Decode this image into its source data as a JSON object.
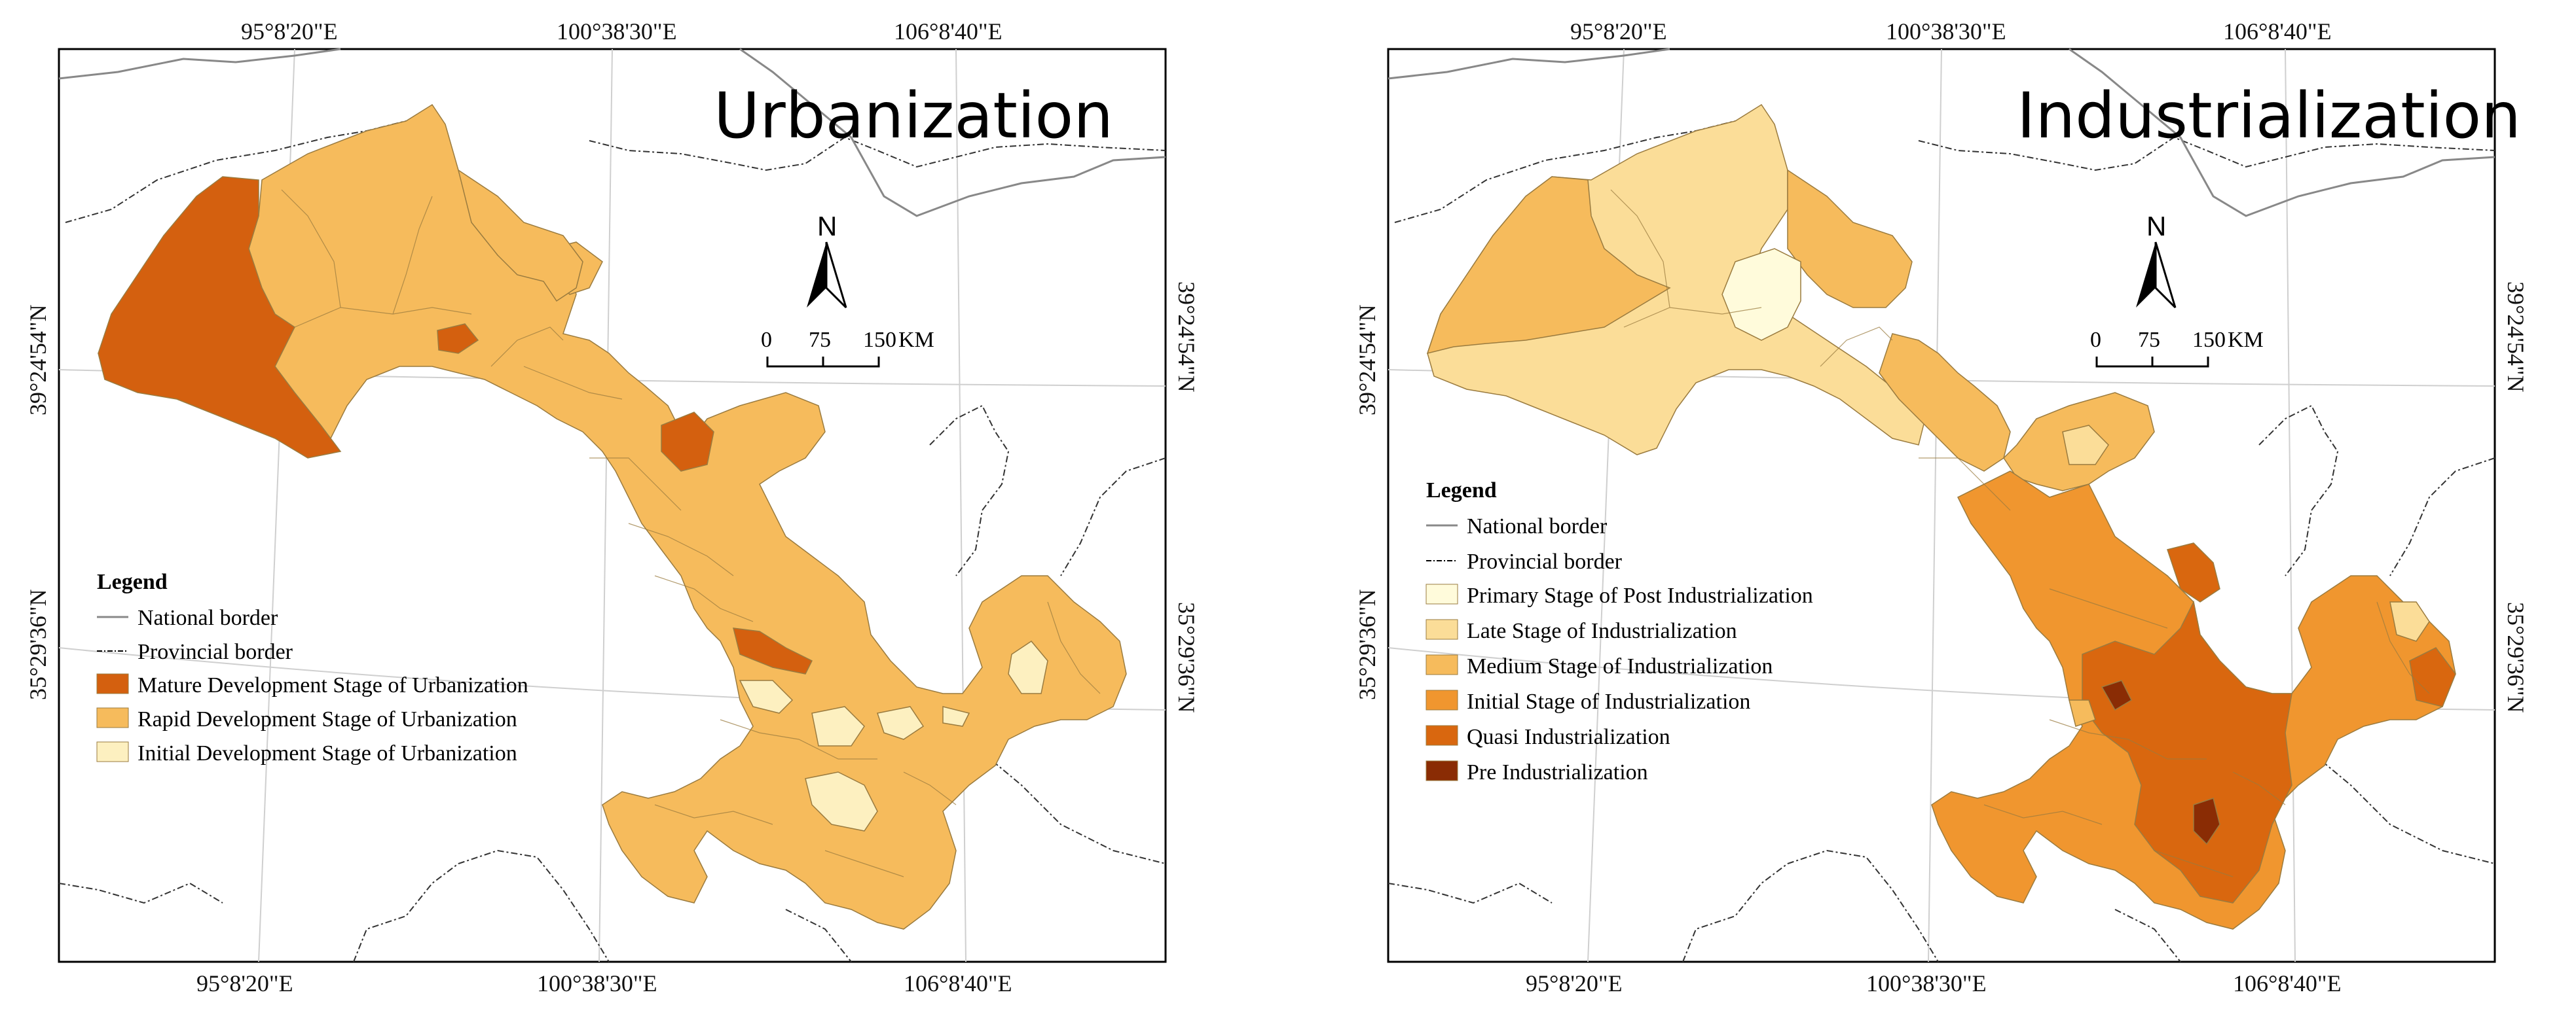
{
  "colors": {
    "mature": "#d4600f",
    "rapid": "#f6bb5c",
    "initial": "#fdf0c0",
    "post": "#fffbdb",
    "late": "#fbdd98",
    "medium": "#f6bb5c",
    "initial_ind": "#f0962f",
    "quasi": "#d9670f",
    "pre": "#8a2c04",
    "border": "#888888",
    "graticule": "#d0d0d0"
  },
  "maps": [
    {
      "id": "urbanization",
      "title": "Urbanization",
      "coords": {
        "top": [
          "95°8'20\"E",
          "100°38'30\"E",
          "106°8'40\"E"
        ],
        "bottom": [
          "95°8'20\"E",
          "100°38'30\"E",
          "106°8'40\"E"
        ],
        "left": [
          "39°24'54\"N",
          "35°29'36\"N"
        ],
        "right": [
          "39°24'54\"N",
          "35°29'36\"N"
        ]
      },
      "north_label": "N",
      "scale": {
        "ticks": [
          "0",
          "75",
          "150"
        ],
        "unit": "KM"
      },
      "legend": {
        "title": "Legend",
        "items": [
          {
            "label": "National border",
            "symbol": "line-national"
          },
          {
            "label": "Provincial border",
            "symbol": "line-provincial"
          },
          {
            "label": "Mature Development Stage of Urbanization",
            "color_key": "mature"
          },
          {
            "label": "Rapid Development Stage of Urbanization",
            "color_key": "rapid"
          },
          {
            "label": "Initial Development Stage of Urbanization",
            "color_key": "initial"
          }
        ]
      }
    },
    {
      "id": "industrialization",
      "title": "Industrialization",
      "coords": {
        "top": [
          "95°8'20\"E",
          "100°38'30\"E",
          "106°8'40\"E"
        ],
        "bottom": [
          "95°8'20\"E",
          "100°38'30\"E",
          "106°8'40\"E"
        ],
        "left": [
          "39°24'54\"N",
          "35°29'36\"N"
        ],
        "right": [
          "39°24'54\"N",
          "35°29'36\"N"
        ]
      },
      "north_label": "N",
      "scale": {
        "ticks": [
          "0",
          "75",
          "150"
        ],
        "unit": "KM"
      },
      "legend": {
        "title": "Legend",
        "items": [
          {
            "label": "National border",
            "symbol": "line-national"
          },
          {
            "label": "Provincial border",
            "symbol": "line-provincial"
          },
          {
            "label": "Primary Stage of Post Industrialization",
            "color_key": "post"
          },
          {
            "label": "Late Stage of  Industrialization",
            "color_key": "late"
          },
          {
            "label": "Medium Stage of Industrialization",
            "color_key": "medium"
          },
          {
            "label": "Initial Stage of Industrialization",
            "color_key": "initial_ind"
          },
          {
            "label": "Quasi Industrialization",
            "color_key": "quasi"
          },
          {
            "label": "Pre Industrialization",
            "color_key": "pre"
          }
        ]
      }
    }
  ]
}
